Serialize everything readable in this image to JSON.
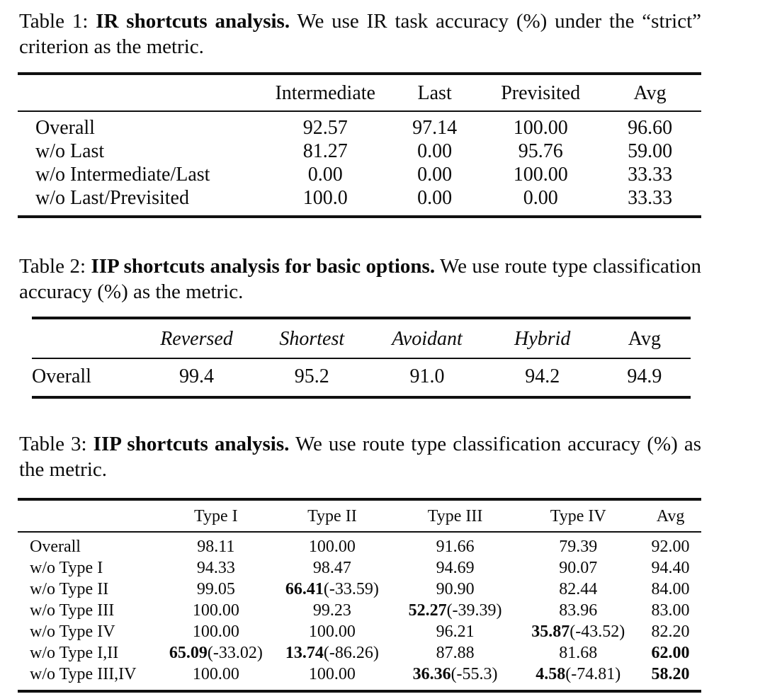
{
  "page": {
    "background": "#ffffff",
    "text_color": "#0b0b0b",
    "rule_color": "#101010"
  },
  "tables": [
    {
      "caption": {
        "prefix": "Table 1:",
        "bold": "IR shortcuts analysis.",
        "rest": "We use IR task accuracy (%) under the “strict” criterion as the metric."
      },
      "columns": [
        {
          "label": ""
        },
        {
          "label": "Intermediate"
        },
        {
          "label": "Last"
        },
        {
          "label": "Previsited"
        },
        {
          "label": "Avg"
        }
      ],
      "rows": [
        {
          "label": "Overall",
          "cells": [
            "92.57",
            "97.14",
            "100.00",
            "96.60"
          ]
        },
        {
          "label": "w/o Last",
          "cells": [
            "81.27",
            "0.00",
            "95.76",
            "59.00"
          ]
        },
        {
          "label": "w/o Intermediate/Last",
          "cells": [
            "0.00",
            "0.00",
            "100.00",
            "33.33"
          ]
        },
        {
          "label": "w/o Last/Previsited",
          "cells": [
            "100.0",
            "0.00",
            "0.00",
            "33.33"
          ]
        }
      ]
    },
    {
      "caption": {
        "prefix": "Table 2:",
        "bold": "IIP shortcuts analysis for basic options.",
        "rest": "We use route type classification accuracy (%) as the metric."
      },
      "columns": [
        {
          "label": ""
        },
        {
          "label": "Reversed",
          "italic": true
        },
        {
          "label": "Shortest",
          "italic": true
        },
        {
          "label": "Avoidant",
          "italic": true
        },
        {
          "label": "Hybrid",
          "italic": true
        },
        {
          "label": "Avg"
        }
      ],
      "rows": [
        {
          "label": "Overall",
          "cells": [
            "99.4",
            "95.2",
            "91.0",
            "94.2",
            "94.9"
          ]
        }
      ]
    },
    {
      "caption": {
        "prefix": "Table 3:",
        "bold": "IIP shortcuts analysis.",
        "rest": "We use route type classification accuracy (%) as the metric."
      },
      "columns": [
        {
          "label": ""
        },
        {
          "label": "Type I"
        },
        {
          "label": "Type II"
        },
        {
          "label": "Type III"
        },
        {
          "label": "Type IV"
        },
        {
          "label": "Avg"
        }
      ],
      "rows": [
        {
          "label": "Overall",
          "cells": [
            "98.11",
            "100.00",
            "91.66",
            "79.39",
            "92.00"
          ]
        },
        {
          "label": "w/o Type I",
          "cells": [
            "94.33",
            "98.47",
            "94.69",
            "90.07",
            "94.40"
          ]
        },
        {
          "label": "w/o Type II",
          "cells": [
            "99.05",
            {
              "v": "66.41",
              "d": "(-33.59)",
              "b": true
            },
            "90.90",
            "82.44",
            "84.00"
          ]
        },
        {
          "label": "w/o Type III",
          "cells": [
            "100.00",
            "99.23",
            {
              "v": "52.27",
              "d": "(-39.39)",
              "b": true
            },
            "83.96",
            "83.00"
          ]
        },
        {
          "label": "w/o Type IV",
          "cells": [
            "100.00",
            "100.00",
            "96.21",
            {
              "v": "35.87",
              "d": "(-43.52)",
              "b": true
            },
            "82.20"
          ]
        },
        {
          "label": "w/o Type I,II",
          "cells": [
            {
              "v": "65.09",
              "d": "(-33.02)",
              "b": true
            },
            {
              "v": "13.74",
              "d": "(-86.26)",
              "b": true
            },
            "87.88",
            "81.68",
            {
              "v": "62.00",
              "b": true
            }
          ]
        },
        {
          "label": "w/o Type III,IV",
          "cells": [
            "100.00",
            "100.00",
            {
              "v": "36.36",
              "d": "(-55.3)",
              "b": true
            },
            {
              "v": "4.58",
              "d": "(-74.81)",
              "b": true
            },
            {
              "v": "58.20",
              "b": true
            }
          ]
        }
      ]
    }
  ]
}
